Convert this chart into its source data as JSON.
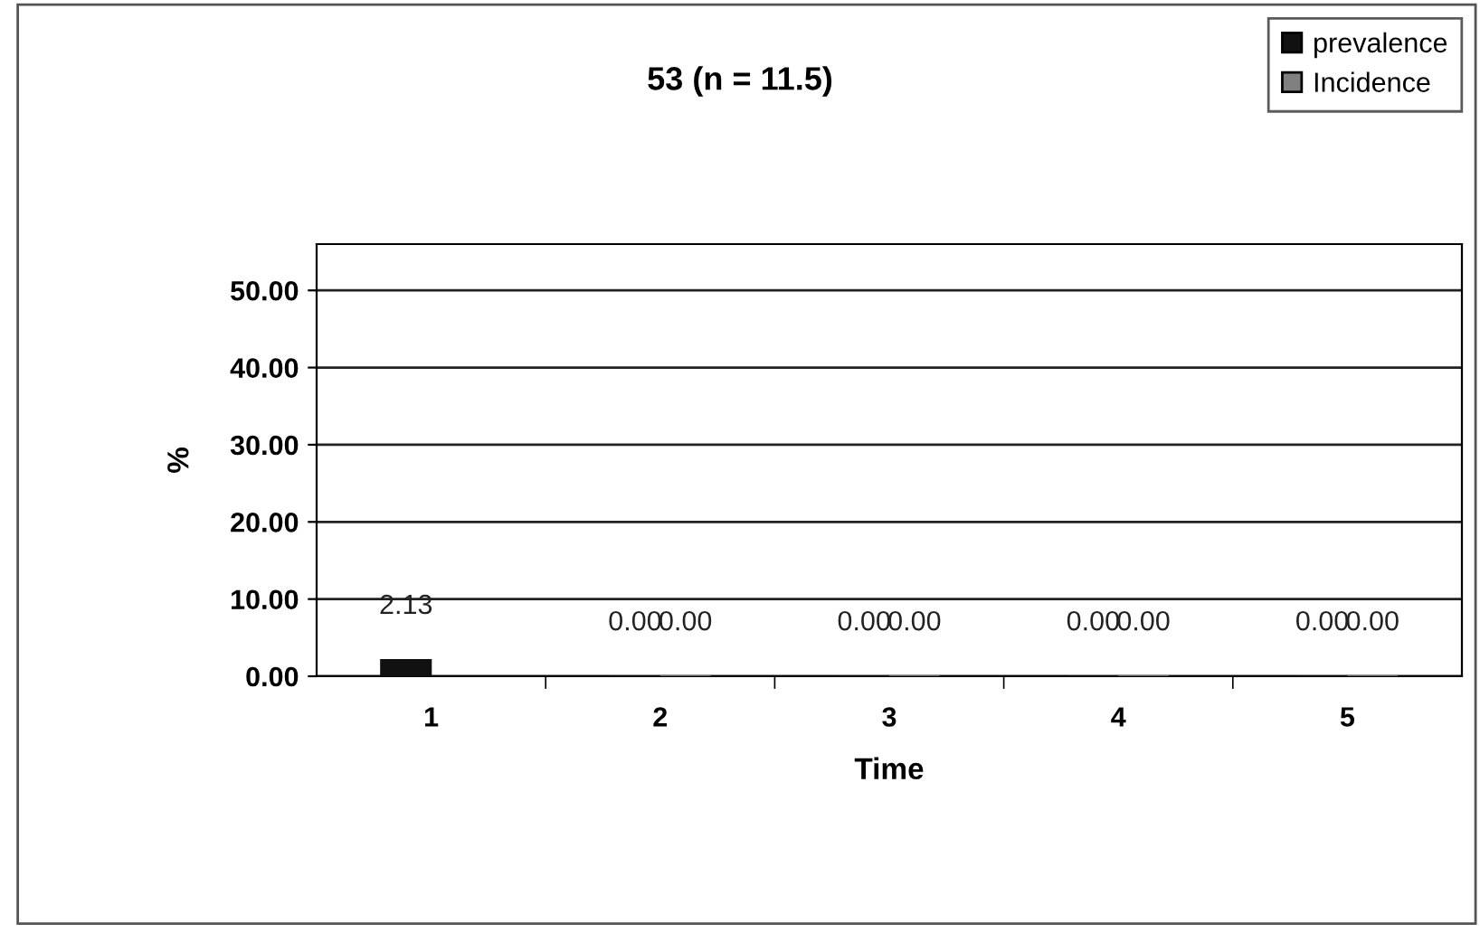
{
  "chart_data": {
    "type": "bar",
    "title": "53 (n = 11.5)",
    "xlabel": "Time",
    "ylabel": "%",
    "categories": [
      "1",
      "2",
      "3",
      "4",
      "5"
    ],
    "series": [
      {
        "name": "prevalence",
        "color": "#111111",
        "values": [
          2.13,
          0,
          0,
          0,
          0
        ],
        "value_labels": [
          "2.13",
          "0.00",
          "0.00",
          "0.00",
          "0.00"
        ]
      },
      {
        "name": "Incidence",
        "color": "#808080",
        "values": [
          null,
          0,
          0,
          0,
          0
        ],
        "value_labels": [
          null,
          "0.00",
          "0.00",
          "0.00",
          "0.00"
        ]
      }
    ],
    "ylim": [
      0,
      56
    ],
    "yticks": [
      {
        "value": 0,
        "label": "0.00"
      },
      {
        "value": 10,
        "label": "10.00"
      },
      {
        "value": 20,
        "label": "20.00"
      },
      {
        "value": 30,
        "label": "30.00"
      },
      {
        "value": 40,
        "label": "40.00"
      },
      {
        "value": 50,
        "label": "50.00"
      }
    ],
    "grid": "y",
    "legend": "top right"
  }
}
